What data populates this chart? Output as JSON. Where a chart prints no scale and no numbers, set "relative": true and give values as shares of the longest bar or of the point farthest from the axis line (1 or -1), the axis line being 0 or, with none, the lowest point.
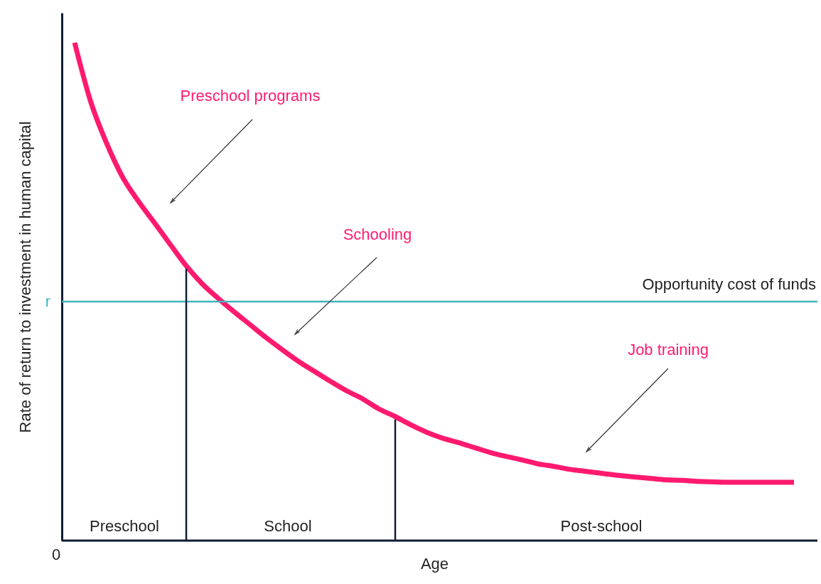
{
  "chart_data": {
    "type": "line",
    "relative": true,
    "xlabel": "Age",
    "ylabel": "Rate of return to investment in human capital",
    "categories": [
      null,
      null,
      null,
      null,
      null,
      null,
      null,
      null,
      null,
      null,
      null,
      null,
      null,
      null,
      null,
      null,
      null,
      null,
      null,
      null,
      null,
      null,
      null,
      null,
      null,
      null,
      null,
      null,
      null,
      null,
      null,
      null,
      null,
      null,
      null,
      null,
      null,
      null,
      null,
      null,
      null,
      null,
      null,
      null,
      null,
      null
    ],
    "marker": "none",
    "line_style": "solid",
    "series": [
      {
        "color": "#ff1a6f",
        "values": [
          1.0,
          0.882,
          0.798,
          0.73,
          0.681,
          0.638,
          0.594,
          0.551,
          0.515,
          0.486,
          0.459,
          0.433,
          0.407,
          0.383,
          0.36,
          0.34,
          0.32,
          0.301,
          0.285,
          0.265,
          0.25,
          0.233,
          0.218,
          0.206,
          0.197,
          0.187,
          0.177,
          0.169,
          0.162,
          0.154,
          0.149,
          0.143,
          0.139,
          0.135,
          0.131,
          0.128,
          0.125,
          0.122,
          0.121,
          0.119,
          0.118,
          0.117,
          0.117,
          0.117,
          0.117,
          0.117
        ]
      }
    ],
    "ref_lines": [
      {
        "axis": "y",
        "value": 0.48,
        "label": "Opportunity cost of funds",
        "color": "#3fb4bd"
      }
    ],
    "annotations": [
      "Preschool programs",
      "Schooling",
      "Job training",
      "Preschool",
      "School",
      "Post-school",
      "0",
      "r"
    ]
  }
}
